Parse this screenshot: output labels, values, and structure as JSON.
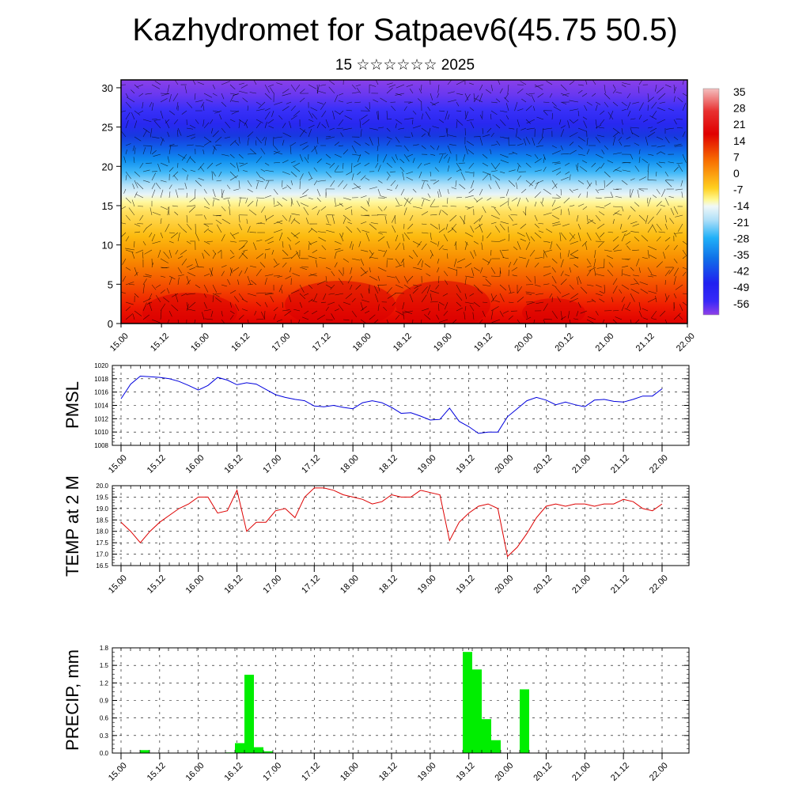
{
  "page": {
    "title": "Kazhydromet for Satpaev6(45.75 50.5)",
    "subtitle": "15 ☆☆☆☆☆☆ 2025"
  },
  "chart_data": [
    {
      "type": "heatmap",
      "name": "vertical temperature cross-section with wind vectors",
      "x_ticks": [
        "15.00",
        "15.12",
        "16.00",
        "16.12",
        "17.00",
        "17.12",
        "18.00",
        "18.12",
        "19.00",
        "19.12",
        "20.00",
        "20.12",
        "21.00",
        "21.12",
        "22.00"
      ],
      "y_ticks": [
        0,
        5,
        10,
        15,
        20,
        25,
        30
      ],
      "ylim": [
        0,
        31
      ],
      "colorbar_labels": [
        35,
        28,
        21,
        14,
        7,
        0,
        -7,
        -14,
        -21,
        -28,
        -35,
        -42,
        -49,
        -56
      ],
      "colorbar_range": [
        -63,
        38
      ],
      "colors": {
        "warm": "#e00000",
        "neutral": "#fff8a0",
        "cold": "#2020ff",
        "coldest": "#8030e0"
      }
    },
    {
      "type": "line",
      "ylabel": "PMSL",
      "x_ticks": [
        "15.00",
        "15.12",
        "16.00",
        "16.12",
        "17.00",
        "17.12",
        "18.00",
        "18.12",
        "19.00",
        "19.12",
        "20.00",
        "20.12",
        "21.00",
        "21.12",
        "22.00"
      ],
      "y_ticks": [
        "1020",
        "1018",
        "1016",
        "1014",
        "1012",
        "1010",
        "1008"
      ],
      "ylim": [
        1008,
        1020
      ],
      "grid": true,
      "color": "#0000dd",
      "values": [
        1015,
        1017.2,
        1018.4,
        1018.3,
        1018.2,
        1018.0,
        1017.6,
        1017.0,
        1016.3,
        1017.0,
        1018.2,
        1017.8,
        1017.1,
        1017.4,
        1017.2,
        1016.4,
        1015.6,
        1015.2,
        1014.9,
        1014.7,
        1013.9,
        1013.8,
        1014.0,
        1013.7,
        1013.5,
        1014.4,
        1014.7,
        1014.4,
        1013.7,
        1012.8,
        1012.9,
        1012.4,
        1011.8,
        1011.9,
        1013.6,
        1011.6,
        1010.8,
        1009.8,
        1010.0,
        1010.0,
        1012.3,
        1013.5,
        1014.7,
        1015.2,
        1014.8,
        1014.1,
        1014.5,
        1014.1,
        1013.8,
        1014.8,
        1014.9,
        1014.6,
        1014.5,
        1014.9,
        1015.4,
        1015.4,
        1016.5
      ]
    },
    {
      "type": "line",
      "ylabel": "TEMP at 2 M",
      "x_ticks": [
        "15.00",
        "15.12",
        "16.00",
        "16.12",
        "17.00",
        "17.12",
        "18.00",
        "18.12",
        "19.00",
        "19.12",
        "20.00",
        "20.12",
        "21.00",
        "21.12",
        "22.00"
      ],
      "y_ticks": [
        "20.0",
        "19.5",
        "19.0",
        "18.5",
        "18.0",
        "17.5",
        "17.0",
        "16.5"
      ],
      "ylim": [
        16.5,
        20
      ],
      "grid": true,
      "color": "#dd0000",
      "values": [
        18.4,
        18.0,
        17.5,
        18.0,
        18.4,
        18.7,
        19.0,
        19.2,
        19.5,
        19.5,
        18.8,
        18.9,
        19.8,
        18.0,
        18.4,
        18.4,
        18.9,
        19.0,
        18.6,
        19.5,
        19.9,
        19.9,
        19.8,
        19.6,
        19.5,
        19.4,
        19.2,
        19.3,
        19.6,
        19.5,
        19.5,
        19.8,
        19.7,
        19.6,
        17.6,
        18.4,
        18.8,
        19.1,
        19.2,
        19.0,
        16.9,
        17.3,
        17.9,
        18.6,
        19.1,
        19.2,
        19.1,
        19.2,
        19.2,
        19.1,
        19.2,
        19.2,
        19.4,
        19.3,
        19.0,
        18.9,
        19.2
      ]
    },
    {
      "type": "bar",
      "ylabel": "PRECIP, mm",
      "x_ticks": [
        "15.00",
        "15.12",
        "16.00",
        "16.12",
        "17.00",
        "17.12",
        "18.00",
        "18.12",
        "19.00",
        "19.12",
        "20.00",
        "20.12",
        "21.00",
        "21.12",
        "22.00"
      ],
      "y_ticks": [
        "1.8",
        "1.5",
        "1.2",
        "0.9",
        "0.6",
        "0.3",
        "0.0"
      ],
      "ylim": [
        0,
        1.8
      ],
      "grid": true,
      "color": "#00ee00",
      "values": [
        0,
        0,
        0.05,
        0,
        0,
        0,
        0,
        0,
        0,
        0,
        0,
        0.01,
        0.17,
        1.34,
        0.1,
        0.03,
        0,
        0,
        0,
        0,
        0,
        0,
        0,
        0,
        0,
        0,
        0,
        0,
        0,
        0,
        0,
        0,
        0,
        0,
        0,
        0,
        1.73,
        1.43,
        0.58,
        0.22,
        0,
        0,
        1.09,
        0,
        0,
        0,
        0,
        0,
        0,
        0,
        0,
        0,
        0,
        0,
        0,
        0,
        0,
        0
      ]
    }
  ]
}
